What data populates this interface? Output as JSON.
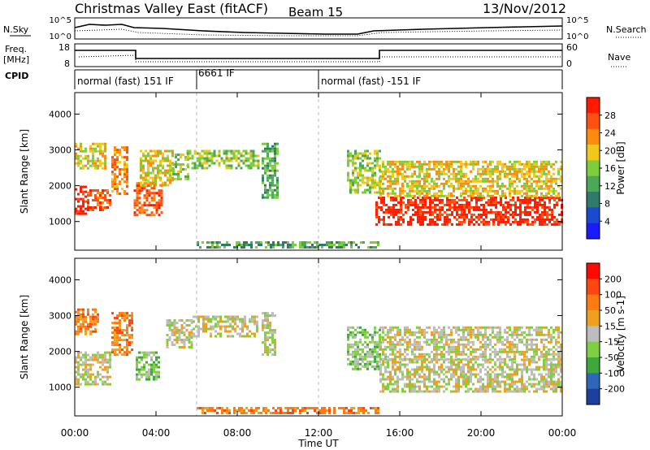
{
  "header": {
    "title": "Christmas Valley East (fitACF)",
    "beam": "Beam 15",
    "date": "13/Nov/2012"
  },
  "colors": {
    "power_scale": [
      "#1a1aff",
      "#1a4ad0",
      "#2f7a6a",
      "#4aa858",
      "#7ccf3a",
      "#f0c81a",
      "#ff8a10",
      "#ff5010",
      "#ff1a00"
    ],
    "velocity_scale": [
      "#1f3f9f",
      "#2f66b8",
      "#3fa83a",
      "#7fd03f",
      "#bdbdbd",
      "#f0a020",
      "#ff7a10",
      "#ff4510",
      "#ff0a00"
    ],
    "gridline": "#bbbbbb",
    "frame": "#000000"
  },
  "time_axis": {
    "label": "Time UT",
    "ticks": [
      "00:00",
      "04:00",
      "08:00",
      "12:00",
      "16:00",
      "20:00",
      "00:00"
    ],
    "range_hours": [
      0,
      24
    ]
  },
  "ancillary": {
    "nsky_label": "N.Sky",
    "nsearch_label": "N.Search",
    "noise_ticks": [
      "10^5",
      "10^0"
    ],
    "freq_label": "Freq.",
    "freq_unit": "[MHz]",
    "freq_ticks": [
      "18",
      "8"
    ],
    "nave_label": "Nave",
    "nave_ticks": [
      "60",
      "0"
    ],
    "cpid_label": "CPID",
    "cpid_segments": [
      {
        "label": "normal (fast) 151 IF",
        "start_hour": 0,
        "end_hour": 6
      },
      {
        "label": "6661 IF",
        "start_hour": 6,
        "end_hour": 12
      },
      {
        "label": "normal (fast) -151 IF",
        "start_hour": 12,
        "end_hour": 24
      }
    ]
  },
  "chart_data": [
    {
      "type": "heatmap",
      "name": "power-panel",
      "title": "",
      "xlabel": "Time UT",
      "ylabel": "Slant Range [km]",
      "x_range": [
        0,
        24
      ],
      "y_range": [
        200,
        4600
      ],
      "y_ticks": [
        1000,
        2000,
        3000,
        4000
      ],
      "colorbar": {
        "label": "Power [dB]",
        "ticks": [
          4,
          8,
          12,
          16,
          20,
          24,
          28
        ],
        "ticks_text": [
          "4",
          "8",
          "12",
          "16",
          "20",
          "24",
          "28"
        ]
      },
      "echo_regions": [
        {
          "t0": 0.0,
          "t1": 0.6,
          "r0": 1200,
          "r1": 2000,
          "level": 8
        },
        {
          "t0": 0.6,
          "t1": 1.8,
          "r0": 1300,
          "r1": 1900,
          "level": 7
        },
        {
          "t0": 0.0,
          "t1": 1.5,
          "r0": 2500,
          "r1": 3200,
          "level": 5
        },
        {
          "t0": 1.8,
          "t1": 2.6,
          "r0": 1800,
          "r1": 3100,
          "level": 6
        },
        {
          "t0": 2.9,
          "t1": 4.3,
          "r0": 1200,
          "r1": 2100,
          "level": 7
        },
        {
          "t0": 3.2,
          "t1": 4.8,
          "r0": 2000,
          "r1": 3000,
          "level": 5
        },
        {
          "t0": 4.8,
          "t1": 5.6,
          "r0": 2200,
          "r1": 2900,
          "level": 4
        },
        {
          "t0": 5.5,
          "t1": 9.0,
          "r0": 2500,
          "r1": 3000,
          "level": 4
        },
        {
          "t0": 9.2,
          "t1": 10.0,
          "r0": 1700,
          "r1": 3200,
          "level": 3
        },
        {
          "t0": 13.4,
          "t1": 15.0,
          "r0": 1800,
          "r1": 3000,
          "level": 4
        },
        {
          "t0": 14.8,
          "t1": 24.0,
          "r0": 900,
          "r1": 1700,
          "level": 8
        },
        {
          "t0": 15.0,
          "t1": 24.0,
          "r0": 1700,
          "r1": 2700,
          "level": 5
        },
        {
          "t0": 6.0,
          "t1": 15.0,
          "r0": 250,
          "r1": 450,
          "level": 3
        }
      ]
    },
    {
      "type": "heatmap",
      "name": "velocity-panel",
      "title": "",
      "xlabel": "Time UT",
      "ylabel": "Slant Range [km]",
      "x_range": [
        0,
        24
      ],
      "y_range": [
        200,
        4600
      ],
      "y_ticks": [
        1000,
        2000,
        3000,
        4000
      ],
      "colorbar": {
        "label": "Velocity [m s-1]",
        "ticks": [
          200,
          100,
          50,
          15,
          -15,
          -50,
          -100,
          -200
        ],
        "ticks_text": [
          "200",
          "100",
          "50",
          "15",
          "-15",
          "-50",
          "-100",
          "-200"
        ]
      },
      "echo_regions": [
        {
          "t0": 0.0,
          "t1": 1.8,
          "r0": 1100,
          "r1": 2000,
          "level": 4
        },
        {
          "t0": 0.0,
          "t1": 1.2,
          "r0": 2500,
          "r1": 3200,
          "level": 6
        },
        {
          "t0": 1.8,
          "t1": 2.8,
          "r0": 1900,
          "r1": 3100,
          "level": 6
        },
        {
          "t0": 3.0,
          "t1": 4.2,
          "r0": 1200,
          "r1": 2000,
          "level": 3
        },
        {
          "t0": 4.5,
          "t1": 5.8,
          "r0": 2100,
          "r1": 2900,
          "level": 4
        },
        {
          "t0": 5.8,
          "t1": 9.0,
          "r0": 2400,
          "r1": 3000,
          "level": 4
        },
        {
          "t0": 9.2,
          "t1": 9.9,
          "r0": 1900,
          "r1": 3100,
          "level": 4
        },
        {
          "t0": 13.4,
          "t1": 15.0,
          "r0": 1500,
          "r1": 2700,
          "level": 3
        },
        {
          "t0": 15.0,
          "t1": 24.0,
          "r0": 900,
          "r1": 1800,
          "level": 4
        },
        {
          "t0": 15.0,
          "t1": 24.0,
          "r0": 1800,
          "r1": 2700,
          "level": 4
        },
        {
          "t0": 6.0,
          "t1": 15.0,
          "r0": 250,
          "r1": 450,
          "level": 6
        }
      ]
    }
  ]
}
